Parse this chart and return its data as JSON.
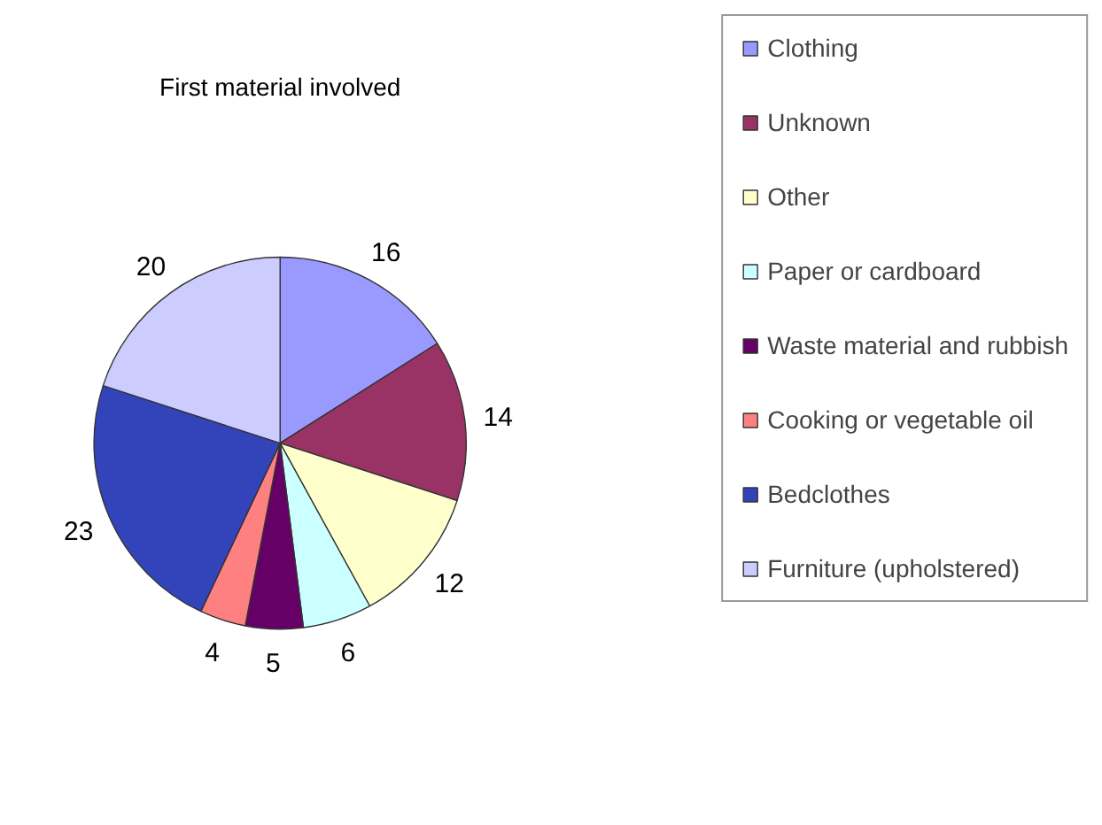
{
  "chart_data": {
    "type": "pie",
    "title": "First material involved",
    "categories": [
      "Clothing",
      "Unknown",
      "Other",
      "Paper or cardboard",
      "Waste material and rubbish",
      "Cooking or vegetable oil",
      "Bedclothes",
      "Furniture (upholstered)"
    ],
    "values": [
      16,
      14,
      12,
      6,
      5,
      4,
      23,
      20
    ],
    "colors": [
      "#9999ff",
      "#993366",
      "#ffffcc",
      "#ccffff",
      "#660066",
      "#ff8080",
      "#3344bb",
      "#ccccff"
    ],
    "data_labels": true,
    "legend": "right"
  }
}
